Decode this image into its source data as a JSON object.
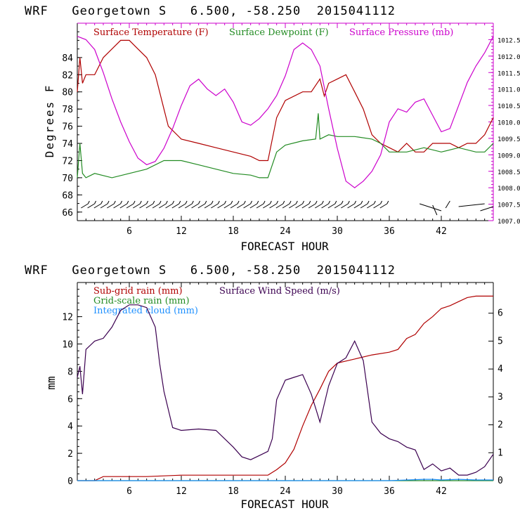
{
  "chart_data": [
    {
      "type": "line",
      "title": "WRF   Georgetown S   6.500, -58.250  2015041112",
      "xlabel": "FORECAST HOUR",
      "ylabel": "Degrees F",
      "xlim": [
        0,
        48
      ],
      "ylim": [
        65,
        88
      ],
      "x_ticks": [
        6,
        12,
        18,
        24,
        30,
        36,
        42
      ],
      "y_ticks": [
        66,
        68,
        70,
        72,
        74,
        76,
        78,
        80,
        82,
        84
      ],
      "y2lim": [
        1007.0,
        1013.0
      ],
      "y2_ticks": [
        "1007.0",
        "1007.5",
        "1008.0",
        "1008.5",
        "1009.0",
        "1009.5",
        "1010.0",
        "1010.5",
        "1011.0",
        "1011.5",
        "1012.0",
        "1012.5"
      ],
      "y2_color": "#cc00cc",
      "grid": false,
      "legend_position": "top",
      "series": [
        {
          "name": "Surface Temperature (F)",
          "color": "#b00000",
          "axis": "left",
          "x": [
            0,
            0.3,
            0.6,
            1,
            2,
            3,
            4,
            5,
            6,
            7,
            8,
            9,
            10,
            10.5,
            11,
            12,
            14,
            16,
            18,
            20,
            21,
            22,
            23,
            24,
            26,
            27,
            28,
            28.5,
            29,
            30,
            31,
            32,
            33,
            34,
            35,
            36,
            37,
            38,
            39,
            40,
            41,
            42,
            43,
            44,
            45,
            46,
            47,
            48
          ],
          "y": [
            80,
            84,
            81,
            82,
            82,
            84,
            85,
            86,
            86,
            85,
            84,
            82,
            78,
            76,
            75.5,
            74.5,
            74,
            73.5,
            73,
            72.5,
            72,
            72,
            77,
            79,
            80,
            80,
            81.5,
            79.5,
            81,
            81.5,
            82,
            80,
            78,
            75,
            74,
            73.5,
            73,
            74,
            73,
            73,
            74,
            74,
            74,
            73.5,
            74,
            74,
            75,
            77
          ]
        },
        {
          "name": "Surface Dewpoint (F)",
          "color": "#228B22",
          "axis": "left",
          "x": [
            0,
            0.3,
            0.6,
            1,
            2,
            4,
            6,
            8,
            10,
            11,
            12,
            14,
            16,
            18,
            20,
            21,
            22,
            23,
            24,
            26,
            27.5,
            27.8,
            28,
            29,
            30,
            32,
            34,
            35,
            36,
            38,
            40,
            42,
            44,
            46,
            47,
            48
          ],
          "y": [
            70,
            74,
            70.5,
            70,
            70.5,
            70,
            70.5,
            71,
            72,
            72,
            72,
            71.5,
            71,
            70.5,
            70.3,
            70,
            70,
            73,
            73.8,
            74.3,
            74.5,
            77.5,
            74.5,
            75,
            74.8,
            74.8,
            74.5,
            74,
            73,
            73,
            73.5,
            73,
            73.5,
            73,
            73,
            74
          ]
        },
        {
          "name": "Surface Pressure (mb)",
          "color": "#cc00cc",
          "axis": "right",
          "x": [
            0,
            1,
            2,
            3,
            4,
            5,
            6,
            7,
            8,
            9,
            10,
            11,
            12,
            13,
            14,
            15,
            16,
            17,
            18,
            19,
            20,
            21,
            22,
            23,
            24,
            25,
            26,
            27,
            28,
            29,
            30,
            31,
            32,
            33,
            34,
            35,
            36,
            37,
            38,
            39,
            40,
            41,
            42,
            43,
            44,
            45,
            46,
            47,
            48
          ],
          "y": [
            1012.6,
            1012.5,
            1012.2,
            1011.5,
            1010.7,
            1010.0,
            1009.4,
            1008.9,
            1008.7,
            1008.8,
            1009.2,
            1009.8,
            1010.5,
            1011.1,
            1011.3,
            1011.0,
            1010.8,
            1011.0,
            1010.6,
            1010.0,
            1009.9,
            1010.1,
            1010.4,
            1010.8,
            1011.4,
            1012.2,
            1012.4,
            1012.2,
            1011.7,
            1010.4,
            1009.2,
            1008.2,
            1008.0,
            1008.2,
            1008.5,
            1009.0,
            1010.0,
            1010.4,
            1010.3,
            1010.6,
            1010.7,
            1010.2,
            1009.7,
            1009.8,
            1010.5,
            1011.2,
            1011.7,
            1012.1,
            1012.6
          ]
        }
      ]
    },
    {
      "type": "line",
      "title": "WRF   Georgetown S   6.500, -58.250  2015041112",
      "xlabel": "FORECAST HOUR",
      "ylabel": "mm",
      "xlim": [
        0,
        48
      ],
      "ylim": [
        0,
        14.5
      ],
      "x_ticks": [
        6,
        12,
        18,
        24,
        30,
        36,
        42
      ],
      "y_ticks": [
        0,
        2,
        4,
        6,
        8,
        10,
        12
      ],
      "y2lim": [
        0,
        7.1
      ],
      "y2_ticks": [
        0,
        1,
        2,
        3,
        4,
        5,
        6
      ],
      "grid": false,
      "legend_position": "top-left",
      "series": [
        {
          "name": "Sub-grid rain (mm)",
          "color": "#b00000",
          "axis": "left",
          "x": [
            0,
            2,
            3,
            4,
            8,
            12,
            20,
            22,
            23,
            24,
            25,
            26,
            27,
            28,
            29,
            30,
            32,
            34,
            36,
            37,
            38,
            39,
            40,
            41,
            42,
            43,
            44,
            45,
            46,
            47,
            48
          ],
          "y": [
            0,
            0,
            0.3,
            0.3,
            0.3,
            0.4,
            0.4,
            0.4,
            0.8,
            1.3,
            2.3,
            4.0,
            5.5,
            6.7,
            8.0,
            8.6,
            8.9,
            9.2,
            9.4,
            9.6,
            10.4,
            10.7,
            11.5,
            12.0,
            12.6,
            12.8,
            13.1,
            13.4,
            13.5,
            13.5,
            13.5
          ]
        },
        {
          "name": "Grid-scale rain (mm)",
          "color": "#228B22",
          "axis": "left",
          "x": [
            0,
            48
          ],
          "y": [
            0,
            0
          ]
        },
        {
          "name": "Integrated cloud (mm)",
          "color": "#1e90ff",
          "axis": "left",
          "x": [
            0,
            24,
            36,
            40,
            41,
            42,
            44,
            46,
            48
          ],
          "y": [
            0,
            0,
            0,
            0.1,
            0.1,
            0.05,
            0.1,
            0.05,
            0.05
          ]
        },
        {
          "name": "Surface Wind Speed (m/s)",
          "color": "#3b0050",
          "axis": "right",
          "x": [
            0,
            0.3,
            0.6,
            1,
            2,
            3,
            4,
            5,
            6,
            7,
            8,
            9,
            9.5,
            10,
            11,
            12,
            14,
            16,
            18,
            19,
            20,
            21,
            22,
            22.5,
            23,
            24,
            25,
            26,
            27,
            28,
            29,
            30,
            31,
            32,
            33,
            34,
            35,
            36,
            37,
            38,
            39,
            40,
            41,
            42,
            43,
            44,
            45,
            46,
            47,
            48
          ],
          "y": [
            3.7,
            4.1,
            3.1,
            4.7,
            5.0,
            5.1,
            5.5,
            6.1,
            6.3,
            6.3,
            6.2,
            5.5,
            4.2,
            3.2,
            1.9,
            1.8,
            1.85,
            1.8,
            1.2,
            0.85,
            0.75,
            0.9,
            1.05,
            1.5,
            2.9,
            3.6,
            3.7,
            3.8,
            3.1,
            2.1,
            3.4,
            4.2,
            4.4,
            5.0,
            4.3,
            2.1,
            1.7,
            1.5,
            1.4,
            1.2,
            1.1,
            0.4,
            0.6,
            0.35,
            0.45,
            0.2,
            0.2,
            0.3,
            0.5,
            0.95
          ]
        }
      ]
    }
  ]
}
